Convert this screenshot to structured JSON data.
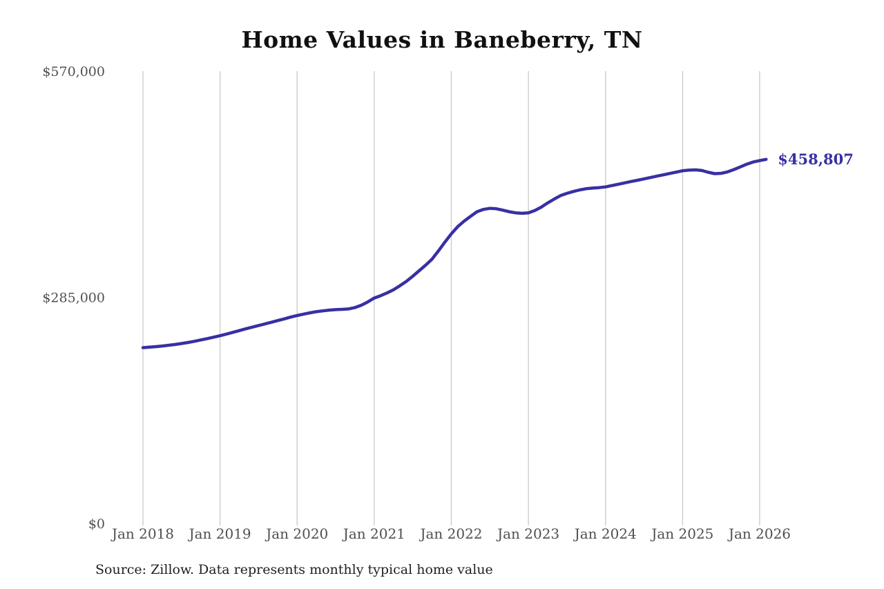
{
  "chart": {
    "title": "Home Values in Baneberry, TN",
    "source": "Source: Zillow. Data represents monthly typical home value",
    "end_label": "$458,807",
    "colors": {
      "line": "#3730a3",
      "grid": "#cccccc",
      "axis_text": "#4f4f4f",
      "title_text": "#111111",
      "source_text": "#1f1f1f",
      "background": "#ffffff"
    },
    "y_axis": {
      "ticks": [
        {
          "label": "$570,000",
          "value": 570000
        },
        {
          "label": "$285,000",
          "value": 285000
        },
        {
          "label": "$0",
          "value": 0
        }
      ]
    },
    "x_axis": {
      "ticks": [
        "Jan 2018",
        "Jan 2019",
        "Jan 2020",
        "Jan 2021",
        "Jan 2022",
        "Jan 2023",
        "Jan 2024",
        "Jan 2025",
        "Jan 2026"
      ]
    }
  },
  "chart_data": {
    "type": "line",
    "title": "Home Values in Baneberry, TN",
    "xlabel": "",
    "ylabel": "",
    "ylim": [
      0,
      570000
    ],
    "grid": "vertical",
    "legend": "none",
    "series_name": "Typical home value (monthly)",
    "end_annotation": "$458,807",
    "x": [
      "2018-01",
      "2018-02",
      "2018-03",
      "2018-04",
      "2018-05",
      "2018-06",
      "2018-07",
      "2018-08",
      "2018-09",
      "2018-10",
      "2018-11",
      "2018-12",
      "2019-01",
      "2019-02",
      "2019-03",
      "2019-04",
      "2019-05",
      "2019-06",
      "2019-07",
      "2019-08",
      "2019-09",
      "2019-10",
      "2019-11",
      "2019-12",
      "2020-01",
      "2020-02",
      "2020-03",
      "2020-04",
      "2020-05",
      "2020-06",
      "2020-07",
      "2020-08",
      "2020-09",
      "2020-10",
      "2020-11",
      "2020-12",
      "2021-01",
      "2021-02",
      "2021-03",
      "2021-04",
      "2021-05",
      "2021-06",
      "2021-07",
      "2021-08",
      "2021-09",
      "2021-10",
      "2021-11",
      "2021-12",
      "2022-01",
      "2022-02",
      "2022-03",
      "2022-04",
      "2022-05",
      "2022-06",
      "2022-07",
      "2022-08",
      "2022-09",
      "2022-10",
      "2022-11",
      "2022-12",
      "2023-01",
      "2023-02",
      "2023-03",
      "2023-04",
      "2023-05",
      "2023-06",
      "2023-07",
      "2023-08",
      "2023-09",
      "2023-10",
      "2023-11",
      "2023-12",
      "2024-01",
      "2024-02",
      "2024-03",
      "2024-04",
      "2024-05",
      "2024-06",
      "2024-07",
      "2024-08",
      "2024-09",
      "2024-10",
      "2024-11",
      "2024-12",
      "2025-01",
      "2025-02",
      "2025-03",
      "2025-04",
      "2025-05",
      "2025-06",
      "2025-07",
      "2025-08",
      "2025-09",
      "2025-10",
      "2025-11",
      "2025-12",
      "2026-01",
      "2026-02"
    ],
    "values": [
      221500,
      222100,
      222800,
      223600,
      224500,
      225500,
      226700,
      228000,
      229500,
      231200,
      232900,
      234700,
      236500,
      238600,
      240800,
      243000,
      245200,
      247300,
      249400,
      251400,
      253500,
      255700,
      257800,
      260000,
      262000,
      263800,
      265400,
      266800,
      267900,
      268800,
      269400,
      269800,
      270300,
      272000,
      275000,
      279200,
      284000,
      287000,
      290500,
      294500,
      299500,
      305000,
      311500,
      318500,
      325500,
      333000,
      343500,
      354500,
      365000,
      374000,
      381000,
      387000,
      392800,
      395700,
      397100,
      396600,
      394800,
      392800,
      391400,
      390800,
      391400,
      394300,
      398600,
      403900,
      408700,
      413100,
      416000,
      418300,
      420300,
      421800,
      422600,
      423200,
      424100,
      425800,
      427500,
      429200,
      430900,
      432500,
      434200,
      435900,
      437600,
      439300,
      441000,
      442700,
      444400,
      445200,
      445600,
      444800,
      442500,
      440800,
      441200,
      443000,
      446000,
      449300,
      452800,
      455500,
      457200,
      458807
    ]
  }
}
